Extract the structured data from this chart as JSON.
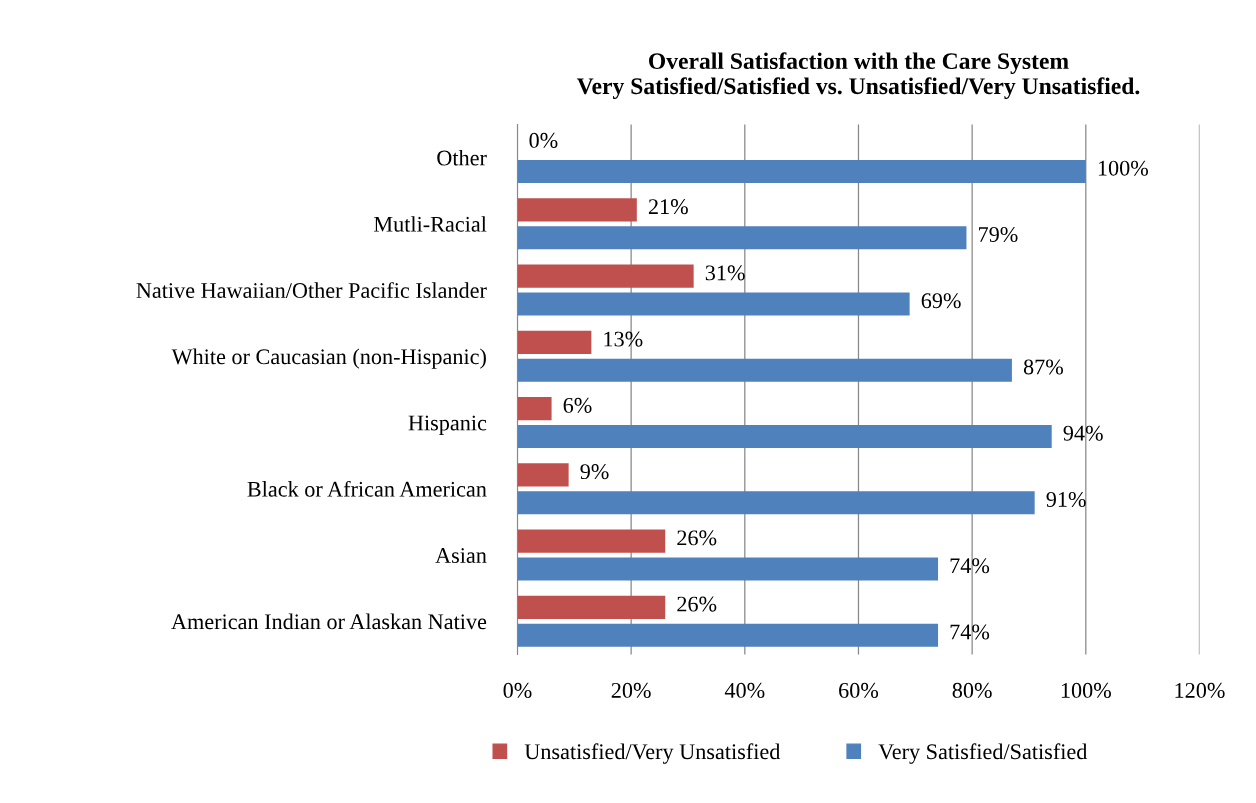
{
  "chart_data": {
    "type": "bar",
    "orientation": "horizontal",
    "title": "Overall Satisfaction with the Care System\nVery Satisfied/Satisfied vs. Unsatisfied/Very Unsatisfied.",
    "categories": [
      "Other",
      "Mutli-Racial",
      "Native Hawaiian/Other Pacific Islander",
      "White or Caucasian (non-Hispanic)",
      "Hispanic",
      "Black or African American",
      "Asian",
      "American Indian or Alaskan Native"
    ],
    "series": [
      {
        "name": "Unsatisfied/Very Unsatisfied",
        "color": "#c0504d",
        "values": [
          0,
          21,
          31,
          13,
          6,
          9,
          26,
          26
        ],
        "value_labels": [
          "0%",
          "21%",
          "31%",
          "13%",
          "6%",
          "9%",
          "26%",
          "26%"
        ]
      },
      {
        "name": "Very Satisfied/Satisfied",
        "color": "#4f81bd",
        "values": [
          100,
          79,
          69,
          87,
          94,
          91,
          74,
          74
        ],
        "value_labels": [
          "100%",
          "79%",
          "69%",
          "87%",
          "94%",
          "91%",
          "74%",
          "74%"
        ]
      }
    ],
    "xlim": [
      0,
      120
    ],
    "xticks": [
      {
        "value": 0,
        "label": "0%"
      },
      {
        "value": 20,
        "label": "20%"
      },
      {
        "value": 40,
        "label": "40%"
      },
      {
        "value": 60,
        "label": "60%"
      },
      {
        "value": 80,
        "label": "80%"
      },
      {
        "value": 100,
        "label": "100%"
      },
      {
        "value": 120,
        "label": "120%"
      }
    ],
    "grid": "x",
    "legend": "bottom"
  }
}
